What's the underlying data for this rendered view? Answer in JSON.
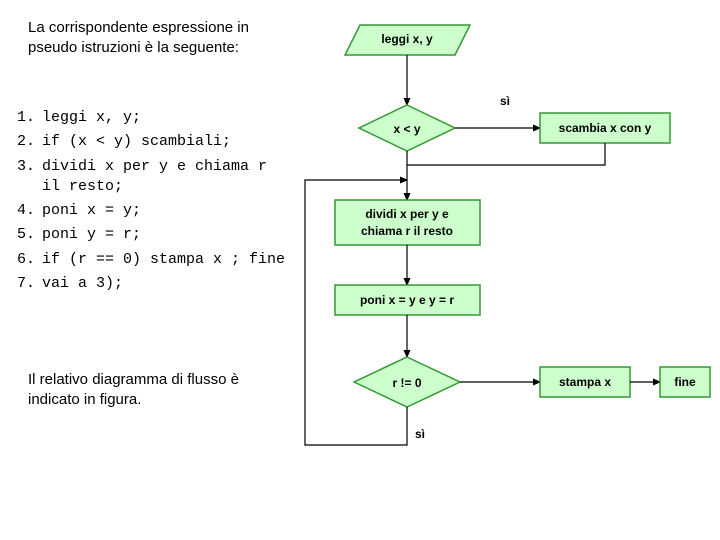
{
  "intro_text": "La corrispondente espressione in pseudo istruzioni è la seguente:",
  "outro_text": "Il relativo diagramma di flusso è indicato in figura.",
  "code_items": [
    {
      "n": "1.",
      "t": "leggi x, y;"
    },
    {
      "n": "2.",
      "t": "if (x < y) scambiali;"
    },
    {
      "n": "3.",
      "t": "dividi x per y e chiama r il resto;"
    },
    {
      "n": "4.",
      "t": "poni x = y;"
    },
    {
      "n": "5.",
      "t": "poni y = r;"
    },
    {
      "n": "6.",
      "t": "if (r == 0) stampa x ; fine"
    },
    {
      "n": "7.",
      "t": "vai a 3);"
    }
  ],
  "flow": {
    "n_leggi": "leggi x, y",
    "n_xy": "x < y",
    "n_scambia": "scambia x con y",
    "n_dividi_l1": "dividi x per y e",
    "n_dividi_l2": "chiama r il resto",
    "n_poni": "poni x = y e y = r",
    "n_rneq": "r != 0",
    "n_stampa": "stampa x",
    "n_fine": "fine",
    "lbl_si_top": "sì",
    "lbl_si_bot": "sì",
    "colors": {
      "node_fill": "#ccffcc",
      "node_stroke": "#339933",
      "text": "#000000",
      "line": "#000000",
      "bg": "#ffffff"
    },
    "fontsize_node": 12
  }
}
